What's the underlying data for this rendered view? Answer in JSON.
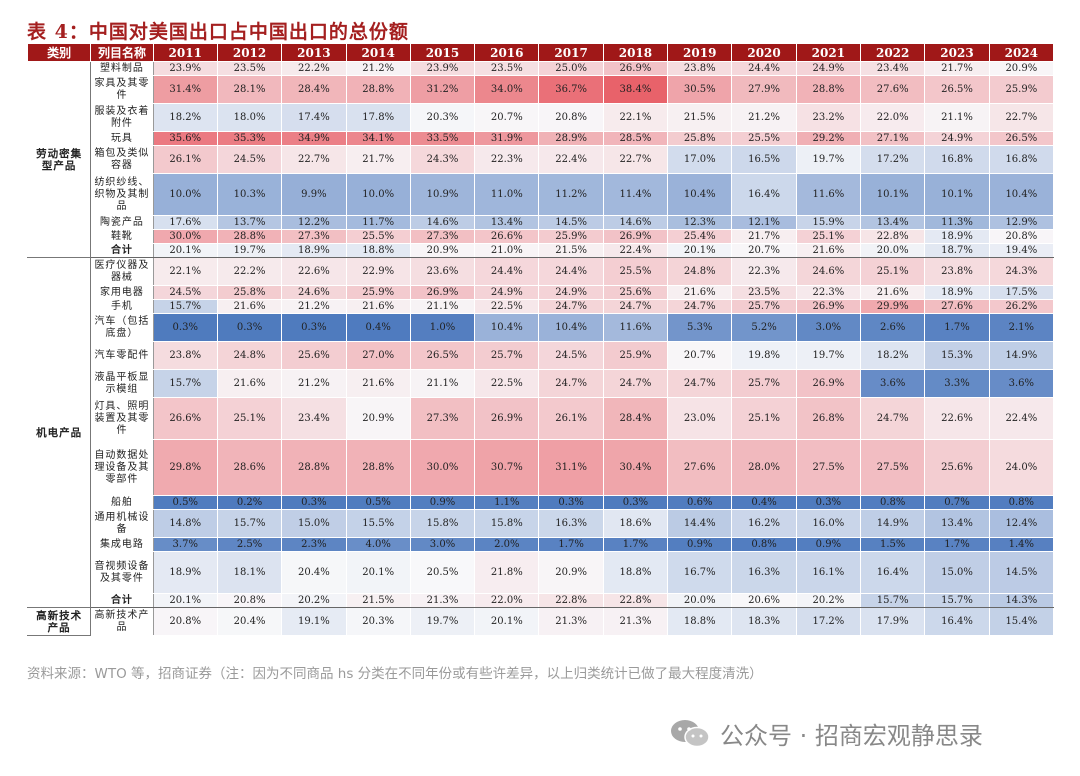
{
  "title": "表 4：中国对美国出口占中国出口的总份额",
  "header": {
    "category": "类别",
    "item": "列目名称",
    "years": [
      "2011",
      "2012",
      "2013",
      "2014",
      "2015",
      "2016",
      "2017",
      "2018",
      "2019",
      "2020",
      "2021",
      "2022",
      "2023",
      "2024"
    ]
  },
  "groups": [
    {
      "name": "劳动密集型产品",
      "rows": [
        {
          "label": "塑料制品",
          "h": 14,
          "values": [
            "23.9%",
            "23.5%",
            "22.2%",
            "21.2%",
            "23.9%",
            "23.5%",
            "25.0%",
            "26.9%",
            "23.8%",
            "24.4%",
            "24.9%",
            "23.4%",
            "21.7%",
            "20.9%"
          ]
        },
        {
          "label": "家具及其零件",
          "h": 28,
          "values": [
            "31.4%",
            "28.1%",
            "28.4%",
            "28.8%",
            "31.2%",
            "34.0%",
            "36.7%",
            "38.4%",
            "30.5%",
            "27.9%",
            "28.8%",
            "27.6%",
            "26.5%",
            "25.9%"
          ]
        },
        {
          "label": "服装及衣着附件",
          "h": 28,
          "values": [
            "18.2%",
            "18.0%",
            "17.4%",
            "17.8%",
            "20.3%",
            "20.7%",
            "20.8%",
            "22.1%",
            "21.5%",
            "21.2%",
            "23.2%",
            "22.0%",
            "21.1%",
            "22.7%"
          ]
        },
        {
          "label": "玩具",
          "h": 14,
          "values": [
            "35.6%",
            "35.3%",
            "34.9%",
            "34.1%",
            "33.5%",
            "31.9%",
            "28.9%",
            "28.5%",
            "25.8%",
            "25.5%",
            "29.2%",
            "27.1%",
            "24.9%",
            "26.5%"
          ]
        },
        {
          "label": "箱包及类似容器",
          "h": 28,
          "values": [
            "26.1%",
            "24.5%",
            "22.7%",
            "21.7%",
            "24.3%",
            "22.3%",
            "22.4%",
            "22.7%",
            "17.0%",
            "16.5%",
            "19.7%",
            "17.2%",
            "16.8%",
            "16.8%"
          ]
        },
        {
          "label": "纺织纱线、织物及其制品",
          "h": 42,
          "values": [
            "10.0%",
            "10.3%",
            "9.9%",
            "10.0%",
            "10.9%",
            "11.0%",
            "11.2%",
            "11.4%",
            "10.4%",
            "16.4%",
            "11.6%",
            "10.1%",
            "10.1%",
            "10.4%"
          ]
        },
        {
          "label": "陶瓷产品",
          "h": 14,
          "values": [
            "17.6%",
            "13.7%",
            "12.2%",
            "11.7%",
            "14.6%",
            "13.4%",
            "14.5%",
            "14.6%",
            "12.3%",
            "12.1%",
            "15.9%",
            "13.4%",
            "11.3%",
            "12.9%"
          ]
        },
        {
          "label": "鞋靴",
          "h": 14,
          "values": [
            "30.0%",
            "28.8%",
            "27.3%",
            "25.5%",
            "27.3%",
            "26.6%",
            "25.9%",
            "26.9%",
            "25.4%",
            "21.7%",
            "25.1%",
            "22.8%",
            "18.9%",
            "20.8%"
          ]
        },
        {
          "label": "合计",
          "h": 14,
          "sum": true,
          "values": [
            "20.1%",
            "19.7%",
            "18.9%",
            "18.8%",
            "20.9%",
            "21.0%",
            "21.5%",
            "22.4%",
            "20.1%",
            "20.7%",
            "21.6%",
            "20.0%",
            "18.7%",
            "19.4%"
          ]
        }
      ]
    },
    {
      "name": "机电产品",
      "rows": [
        {
          "label": "医疗仪器及器械",
          "h": 28,
          "values": [
            "22.1%",
            "22.2%",
            "22.6%",
            "22.9%",
            "23.6%",
            "24.4%",
            "24.4%",
            "25.5%",
            "24.8%",
            "22.3%",
            "24.6%",
            "25.1%",
            "23.8%",
            "24.3%"
          ]
        },
        {
          "label": "家用电器",
          "h": 14,
          "values": [
            "24.5%",
            "25.8%",
            "24.6%",
            "25.9%",
            "26.9%",
            "24.9%",
            "24.9%",
            "25.6%",
            "21.6%",
            "23.5%",
            "22.3%",
            "21.6%",
            "18.9%",
            "17.5%"
          ]
        },
        {
          "label": "手机",
          "h": 14,
          "values": [
            "15.7%",
            "21.6%",
            "21.2%",
            "21.6%",
            "21.1%",
            "22.5%",
            "24.7%",
            "24.7%",
            "24.7%",
            "25.7%",
            "26.9%",
            "29.9%",
            "27.6%",
            "26.2%"
          ]
        },
        {
          "label": "汽车（包括底盘）",
          "h": 28,
          "values": [
            "0.3%",
            "0.3%",
            "0.3%",
            "0.4%",
            "1.0%",
            "10.4%",
            "10.4%",
            "11.6%",
            "5.3%",
            "5.2%",
            "3.0%",
            "2.6%",
            "1.7%",
            "2.1%"
          ]
        },
        {
          "label": "汽车零配件",
          "h": 28,
          "values": [
            "23.8%",
            "24.8%",
            "25.6%",
            "27.0%",
            "26.5%",
            "25.7%",
            "24.5%",
            "25.9%",
            "20.7%",
            "19.8%",
            "19.7%",
            "18.2%",
            "15.3%",
            "14.9%"
          ]
        },
        {
          "label": "液晶平板显示模组",
          "h": 28,
          "values": [
            "15.7%",
            "21.6%",
            "21.2%",
            "21.6%",
            "21.1%",
            "22.5%",
            "24.7%",
            "24.7%",
            "24.7%",
            "25.7%",
            "26.9%",
            "3.6%",
            "3.3%",
            "3.6%"
          ]
        },
        {
          "label": "灯具、照明装置及其零件",
          "h": 42,
          "values": [
            "26.6%",
            "25.1%",
            "23.4%",
            "20.9%",
            "27.3%",
            "26.9%",
            "26.1%",
            "28.4%",
            "23.0%",
            "25.1%",
            "26.8%",
            "24.7%",
            "22.6%",
            "22.4%"
          ]
        },
        {
          "label": "自动数据处理设备及其零部件",
          "h": 56,
          "values": [
            "29.8%",
            "28.6%",
            "28.8%",
            "28.8%",
            "30.0%",
            "30.7%",
            "31.1%",
            "30.4%",
            "27.6%",
            "28.0%",
            "27.5%",
            "27.5%",
            "25.6%",
            "24.0%"
          ]
        },
        {
          "label": "船舶",
          "h": 14,
          "values": [
            "0.5%",
            "0.2%",
            "0.3%",
            "0.5%",
            "0.9%",
            "1.1%",
            "0.3%",
            "0.3%",
            "0.6%",
            "0.4%",
            "0.3%",
            "0.8%",
            "0.7%",
            "0.8%"
          ]
        },
        {
          "label": "通用机械设备",
          "h": 28,
          "values": [
            "14.8%",
            "15.7%",
            "15.0%",
            "15.5%",
            "15.8%",
            "15.8%",
            "16.3%",
            "18.6%",
            "14.4%",
            "16.2%",
            "16.0%",
            "14.9%",
            "13.4%",
            "12.4%"
          ]
        },
        {
          "label": "集成电路",
          "h": 14,
          "values": [
            "3.7%",
            "2.5%",
            "2.3%",
            "4.0%",
            "3.0%",
            "2.0%",
            "1.7%",
            "1.7%",
            "0.9%",
            "0.8%",
            "0.9%",
            "1.5%",
            "1.7%",
            "1.4%"
          ]
        },
        {
          "label": "音视频设备及其零件",
          "h": 42,
          "values": [
            "18.9%",
            "18.1%",
            "20.4%",
            "20.1%",
            "20.5%",
            "21.8%",
            "20.9%",
            "18.8%",
            "16.7%",
            "16.3%",
            "16.1%",
            "16.4%",
            "15.0%",
            "14.5%"
          ]
        },
        {
          "label": "合计",
          "h": 14,
          "sum": true,
          "values": [
            "20.1%",
            "20.8%",
            "20.2%",
            "21.5%",
            "21.3%",
            "22.0%",
            "22.8%",
            "22.8%",
            "20.0%",
            "20.6%",
            "20.2%",
            "15.7%",
            "15.7%",
            "14.3%"
          ]
        }
      ]
    },
    {
      "name": "高新技术产品",
      "rows": [
        {
          "label": "高新技术产品",
          "h": 28,
          "values": [
            "20.8%",
            "20.4%",
            "19.1%",
            "20.3%",
            "19.7%",
            "20.1%",
            "21.3%",
            "21.3%",
            "18.8%",
            "18.3%",
            "17.2%",
            "17.9%",
            "16.4%",
            "15.4%"
          ]
        }
      ]
    }
  ],
  "source": "资料来源：WTO 等，招商证券（注：因为不同商品 hs 分类在不同年份或有些许差异，以上归类统计已做了最大程度清洗）",
  "watermark": "公众号 · 招商宏观静思录",
  "colors": {
    "header_bg": "#a01818",
    "title": "#a41f1f",
    "high": "#e8606a",
    "low": "#4f79bd",
    "mid": "#f7f7f7"
  }
}
